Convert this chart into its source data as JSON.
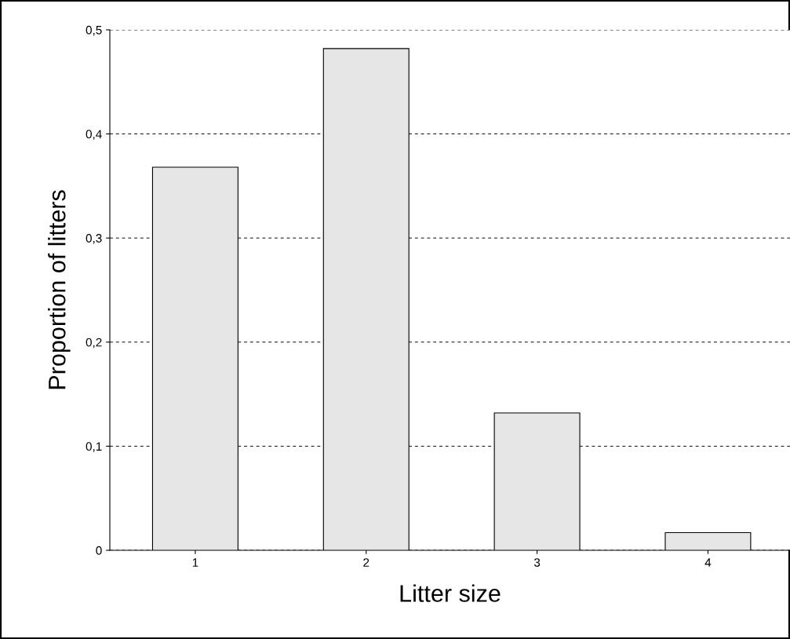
{
  "chart_data": {
    "type": "bar",
    "xlabel": "Litter size",
    "ylabel": "Proportion of litters",
    "categories": [
      "1",
      "2",
      "3",
      "4"
    ],
    "values": [
      0.368,
      0.482,
      0.132,
      0.017
    ],
    "color": "#e6e6e6",
    "ylim": [
      0,
      0.5
    ],
    "yticks": [
      0,
      {
        "value": 0.1,
        "label": "0,1"
      },
      {
        "value": 0.2,
        "label": "0,2"
      },
      {
        "value": 0.3,
        "label": "0,3"
      },
      {
        "value": 0.4,
        "label": "0,4"
      },
      {
        "value": 0.5,
        "label": "0,5"
      }
    ],
    "grid": "y",
    "line_style": "dashed",
    "legend": false
  }
}
